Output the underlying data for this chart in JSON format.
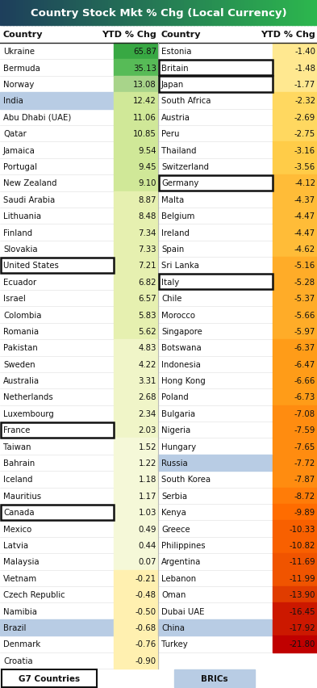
{
  "title": "Country Stock Mkt % Chg (Local Currency)",
  "title_bg_left": "#1a3a5c",
  "title_bg_right": "#2d8a4e",
  "left_col": [
    {
      "country": "Ukraine",
      "value": 65.87,
      "bg": null,
      "border": false
    },
    {
      "country": "Bermuda",
      "value": 35.13,
      "bg": null,
      "border": false
    },
    {
      "country": "Norway",
      "value": 13.08,
      "bg": null,
      "border": false
    },
    {
      "country": "India",
      "value": 12.42,
      "bg": "#b8cce4",
      "border": false
    },
    {
      "country": "Abu Dhabi (UAE)",
      "value": 11.06,
      "bg": null,
      "border": false
    },
    {
      "country": "Qatar",
      "value": 10.85,
      "bg": null,
      "border": false
    },
    {
      "country": "Jamaica",
      "value": 9.54,
      "bg": null,
      "border": false
    },
    {
      "country": "Portugal",
      "value": 9.45,
      "bg": null,
      "border": false
    },
    {
      "country": "New Zealand",
      "value": 9.1,
      "bg": null,
      "border": false
    },
    {
      "country": "Saudi Arabia",
      "value": 8.87,
      "bg": null,
      "border": false
    },
    {
      "country": "Lithuania",
      "value": 8.48,
      "bg": null,
      "border": false
    },
    {
      "country": "Finland",
      "value": 7.34,
      "bg": null,
      "border": false
    },
    {
      "country": "Slovakia",
      "value": 7.33,
      "bg": null,
      "border": false
    },
    {
      "country": "United States",
      "value": 7.21,
      "bg": null,
      "border": true
    },
    {
      "country": "Ecuador",
      "value": 6.82,
      "bg": null,
      "border": false
    },
    {
      "country": "Israel",
      "value": 6.57,
      "bg": null,
      "border": false
    },
    {
      "country": "Colombia",
      "value": 5.83,
      "bg": null,
      "border": false
    },
    {
      "country": "Romania",
      "value": 5.62,
      "bg": null,
      "border": false
    },
    {
      "country": "Pakistan",
      "value": 4.83,
      "bg": null,
      "border": false
    },
    {
      "country": "Sweden",
      "value": 4.22,
      "bg": null,
      "border": false
    },
    {
      "country": "Australia",
      "value": 3.31,
      "bg": null,
      "border": false
    },
    {
      "country": "Netherlands",
      "value": 2.68,
      "bg": null,
      "border": false
    },
    {
      "country": "Luxembourg",
      "value": 2.34,
      "bg": null,
      "border": false
    },
    {
      "country": "France",
      "value": 2.03,
      "bg": null,
      "border": true
    },
    {
      "country": "Taiwan",
      "value": 1.52,
      "bg": null,
      "border": false
    },
    {
      "country": "Bahrain",
      "value": 1.22,
      "bg": null,
      "border": false
    },
    {
      "country": "Iceland",
      "value": 1.18,
      "bg": null,
      "border": false
    },
    {
      "country": "Mauritius",
      "value": 1.17,
      "bg": null,
      "border": false
    },
    {
      "country": "Canada",
      "value": 1.03,
      "bg": null,
      "border": true
    },
    {
      "country": "Mexico",
      "value": 0.49,
      "bg": null,
      "border": false
    },
    {
      "country": "Latvia",
      "value": 0.44,
      "bg": null,
      "border": false
    },
    {
      "country": "Malaysia",
      "value": 0.07,
      "bg": null,
      "border": false
    },
    {
      "country": "Vietnam",
      "value": -0.21,
      "bg": null,
      "border": false
    },
    {
      "country": "Czech Republic",
      "value": -0.48,
      "bg": null,
      "border": false
    },
    {
      "country": "Namibia",
      "value": -0.5,
      "bg": null,
      "border": false
    },
    {
      "country": "Brazil",
      "value": -0.68,
      "bg": "#b8cce4",
      "border": false
    },
    {
      "country": "Denmark",
      "value": -0.76,
      "bg": null,
      "border": false
    },
    {
      "country": "Croatia",
      "value": -0.9,
      "bg": null,
      "border": false
    }
  ],
  "right_col": [
    {
      "country": "Estonia",
      "value": -1.4,
      "bg": null,
      "border": false
    },
    {
      "country": "Britain",
      "value": -1.48,
      "bg": null,
      "border": true
    },
    {
      "country": "Japan",
      "value": -1.77,
      "bg": null,
      "border": true
    },
    {
      "country": "South Africa",
      "value": -2.32,
      "bg": null,
      "border": false
    },
    {
      "country": "Austria",
      "value": -2.69,
      "bg": null,
      "border": false
    },
    {
      "country": "Peru",
      "value": -2.75,
      "bg": null,
      "border": false
    },
    {
      "country": "Thailand",
      "value": -3.16,
      "bg": null,
      "border": false
    },
    {
      "country": "Switzerland",
      "value": -3.56,
      "bg": null,
      "border": false
    },
    {
      "country": "Germany",
      "value": -4.12,
      "bg": null,
      "border": true
    },
    {
      "country": "Malta",
      "value": -4.37,
      "bg": null,
      "border": false
    },
    {
      "country": "Belgium",
      "value": -4.47,
      "bg": null,
      "border": false
    },
    {
      "country": "Ireland",
      "value": -4.47,
      "bg": null,
      "border": false
    },
    {
      "country": "Spain",
      "value": -4.62,
      "bg": null,
      "border": false
    },
    {
      "country": "Sri Lanka",
      "value": -5.16,
      "bg": null,
      "border": false
    },
    {
      "country": "Italy",
      "value": -5.28,
      "bg": null,
      "border": true
    },
    {
      "country": "Chile",
      "value": -5.37,
      "bg": null,
      "border": false
    },
    {
      "country": "Morocco",
      "value": -5.66,
      "bg": null,
      "border": false
    },
    {
      "country": "Singapore",
      "value": -5.97,
      "bg": null,
      "border": false
    },
    {
      "country": "Botswana",
      "value": -6.37,
      "bg": null,
      "border": false
    },
    {
      "country": "Indonesia",
      "value": -6.47,
      "bg": null,
      "border": false
    },
    {
      "country": "Hong Kong",
      "value": -6.66,
      "bg": null,
      "border": false
    },
    {
      "country": "Poland",
      "value": -6.73,
      "bg": null,
      "border": false
    },
    {
      "country": "Bulgaria",
      "value": -7.08,
      "bg": null,
      "border": false
    },
    {
      "country": "Nigeria",
      "value": -7.59,
      "bg": null,
      "border": false
    },
    {
      "country": "Hungary",
      "value": -7.65,
      "bg": null,
      "border": false
    },
    {
      "country": "Russia",
      "value": -7.72,
      "bg": "#b8cce4",
      "border": false
    },
    {
      "country": "South Korea",
      "value": -7.87,
      "bg": null,
      "border": false
    },
    {
      "country": "Serbia",
      "value": -8.72,
      "bg": null,
      "border": false
    },
    {
      "country": "Kenya",
      "value": -9.89,
      "bg": null,
      "border": false
    },
    {
      "country": "Greece",
      "value": -10.33,
      "bg": null,
      "border": false
    },
    {
      "country": "Philippines",
      "value": -10.82,
      "bg": null,
      "border": false
    },
    {
      "country": "Argentina",
      "value": -11.69,
      "bg": null,
      "border": false
    },
    {
      "country": "Lebanon",
      "value": -11.99,
      "bg": null,
      "border": false
    },
    {
      "country": "Oman",
      "value": -13.9,
      "bg": null,
      "border": false
    },
    {
      "country": "Dubai UAE",
      "value": -16.45,
      "bg": null,
      "border": false
    },
    {
      "country": "China",
      "value": -17.92,
      "bg": "#b8cce4",
      "border": false
    },
    {
      "country": "Turkey",
      "value": -21.8,
      "bg": null,
      "border": false
    }
  ],
  "footer_left": "G7 Countries",
  "footer_right": "BRICs"
}
